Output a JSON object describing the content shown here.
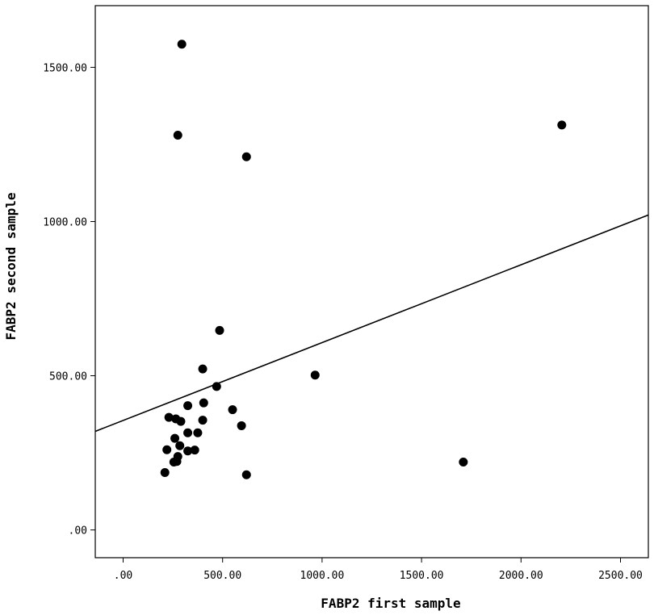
{
  "chart_data": {
    "type": "scatter",
    "title": "",
    "xlabel": "FABP2 first sample",
    "ylabel": "FABP2 second sample",
    "xlim": [
      -140,
      2640
    ],
    "ylim": [
      -90,
      1700
    ],
    "x_ticks": [
      0,
      500,
      1000,
      1500,
      2000,
      2500
    ],
    "x_tick_labels": [
      ".00",
      "500.00",
      "1000.00",
      "1500.00",
      "2000.00",
      "2500.00"
    ],
    "y_ticks": [
      0,
      500,
      1000,
      1500
    ],
    "y_tick_labels": [
      ".00",
      "500.00",
      "1000.00",
      "1500.00"
    ],
    "grid": false,
    "point_color": "#000000",
    "line_color": "#000000",
    "series": [
      {
        "values": [
          {
            "x": 295,
            "y": 1575
          },
          {
            "x": 275,
            "y": 1280
          },
          {
            "x": 620,
            "y": 1210
          },
          {
            "x": 2205,
            "y": 1313
          },
          {
            "x": 485,
            "y": 647
          },
          {
            "x": 400,
            "y": 522
          },
          {
            "x": 965,
            "y": 502
          },
          {
            "x": 470,
            "y": 465
          },
          {
            "x": 405,
            "y": 412
          },
          {
            "x": 325,
            "y": 403
          },
          {
            "x": 550,
            "y": 390
          },
          {
            "x": 230,
            "y": 365
          },
          {
            "x": 265,
            "y": 360
          },
          {
            "x": 290,
            "y": 352
          },
          {
            "x": 400,
            "y": 356
          },
          {
            "x": 595,
            "y": 338
          },
          {
            "x": 325,
            "y": 315
          },
          {
            "x": 375,
            "y": 315
          },
          {
            "x": 260,
            "y": 297
          },
          {
            "x": 285,
            "y": 273
          },
          {
            "x": 220,
            "y": 260
          },
          {
            "x": 325,
            "y": 256
          },
          {
            "x": 360,
            "y": 259
          },
          {
            "x": 275,
            "y": 238
          },
          {
            "x": 255,
            "y": 220
          },
          {
            "x": 270,
            "y": 222
          },
          {
            "x": 1710,
            "y": 220
          },
          {
            "x": 210,
            "y": 186
          },
          {
            "x": 620,
            "y": 179
          }
        ]
      }
    ],
    "fit_line": {
      "intercept": 355,
      "slope": 0.2524
    }
  }
}
